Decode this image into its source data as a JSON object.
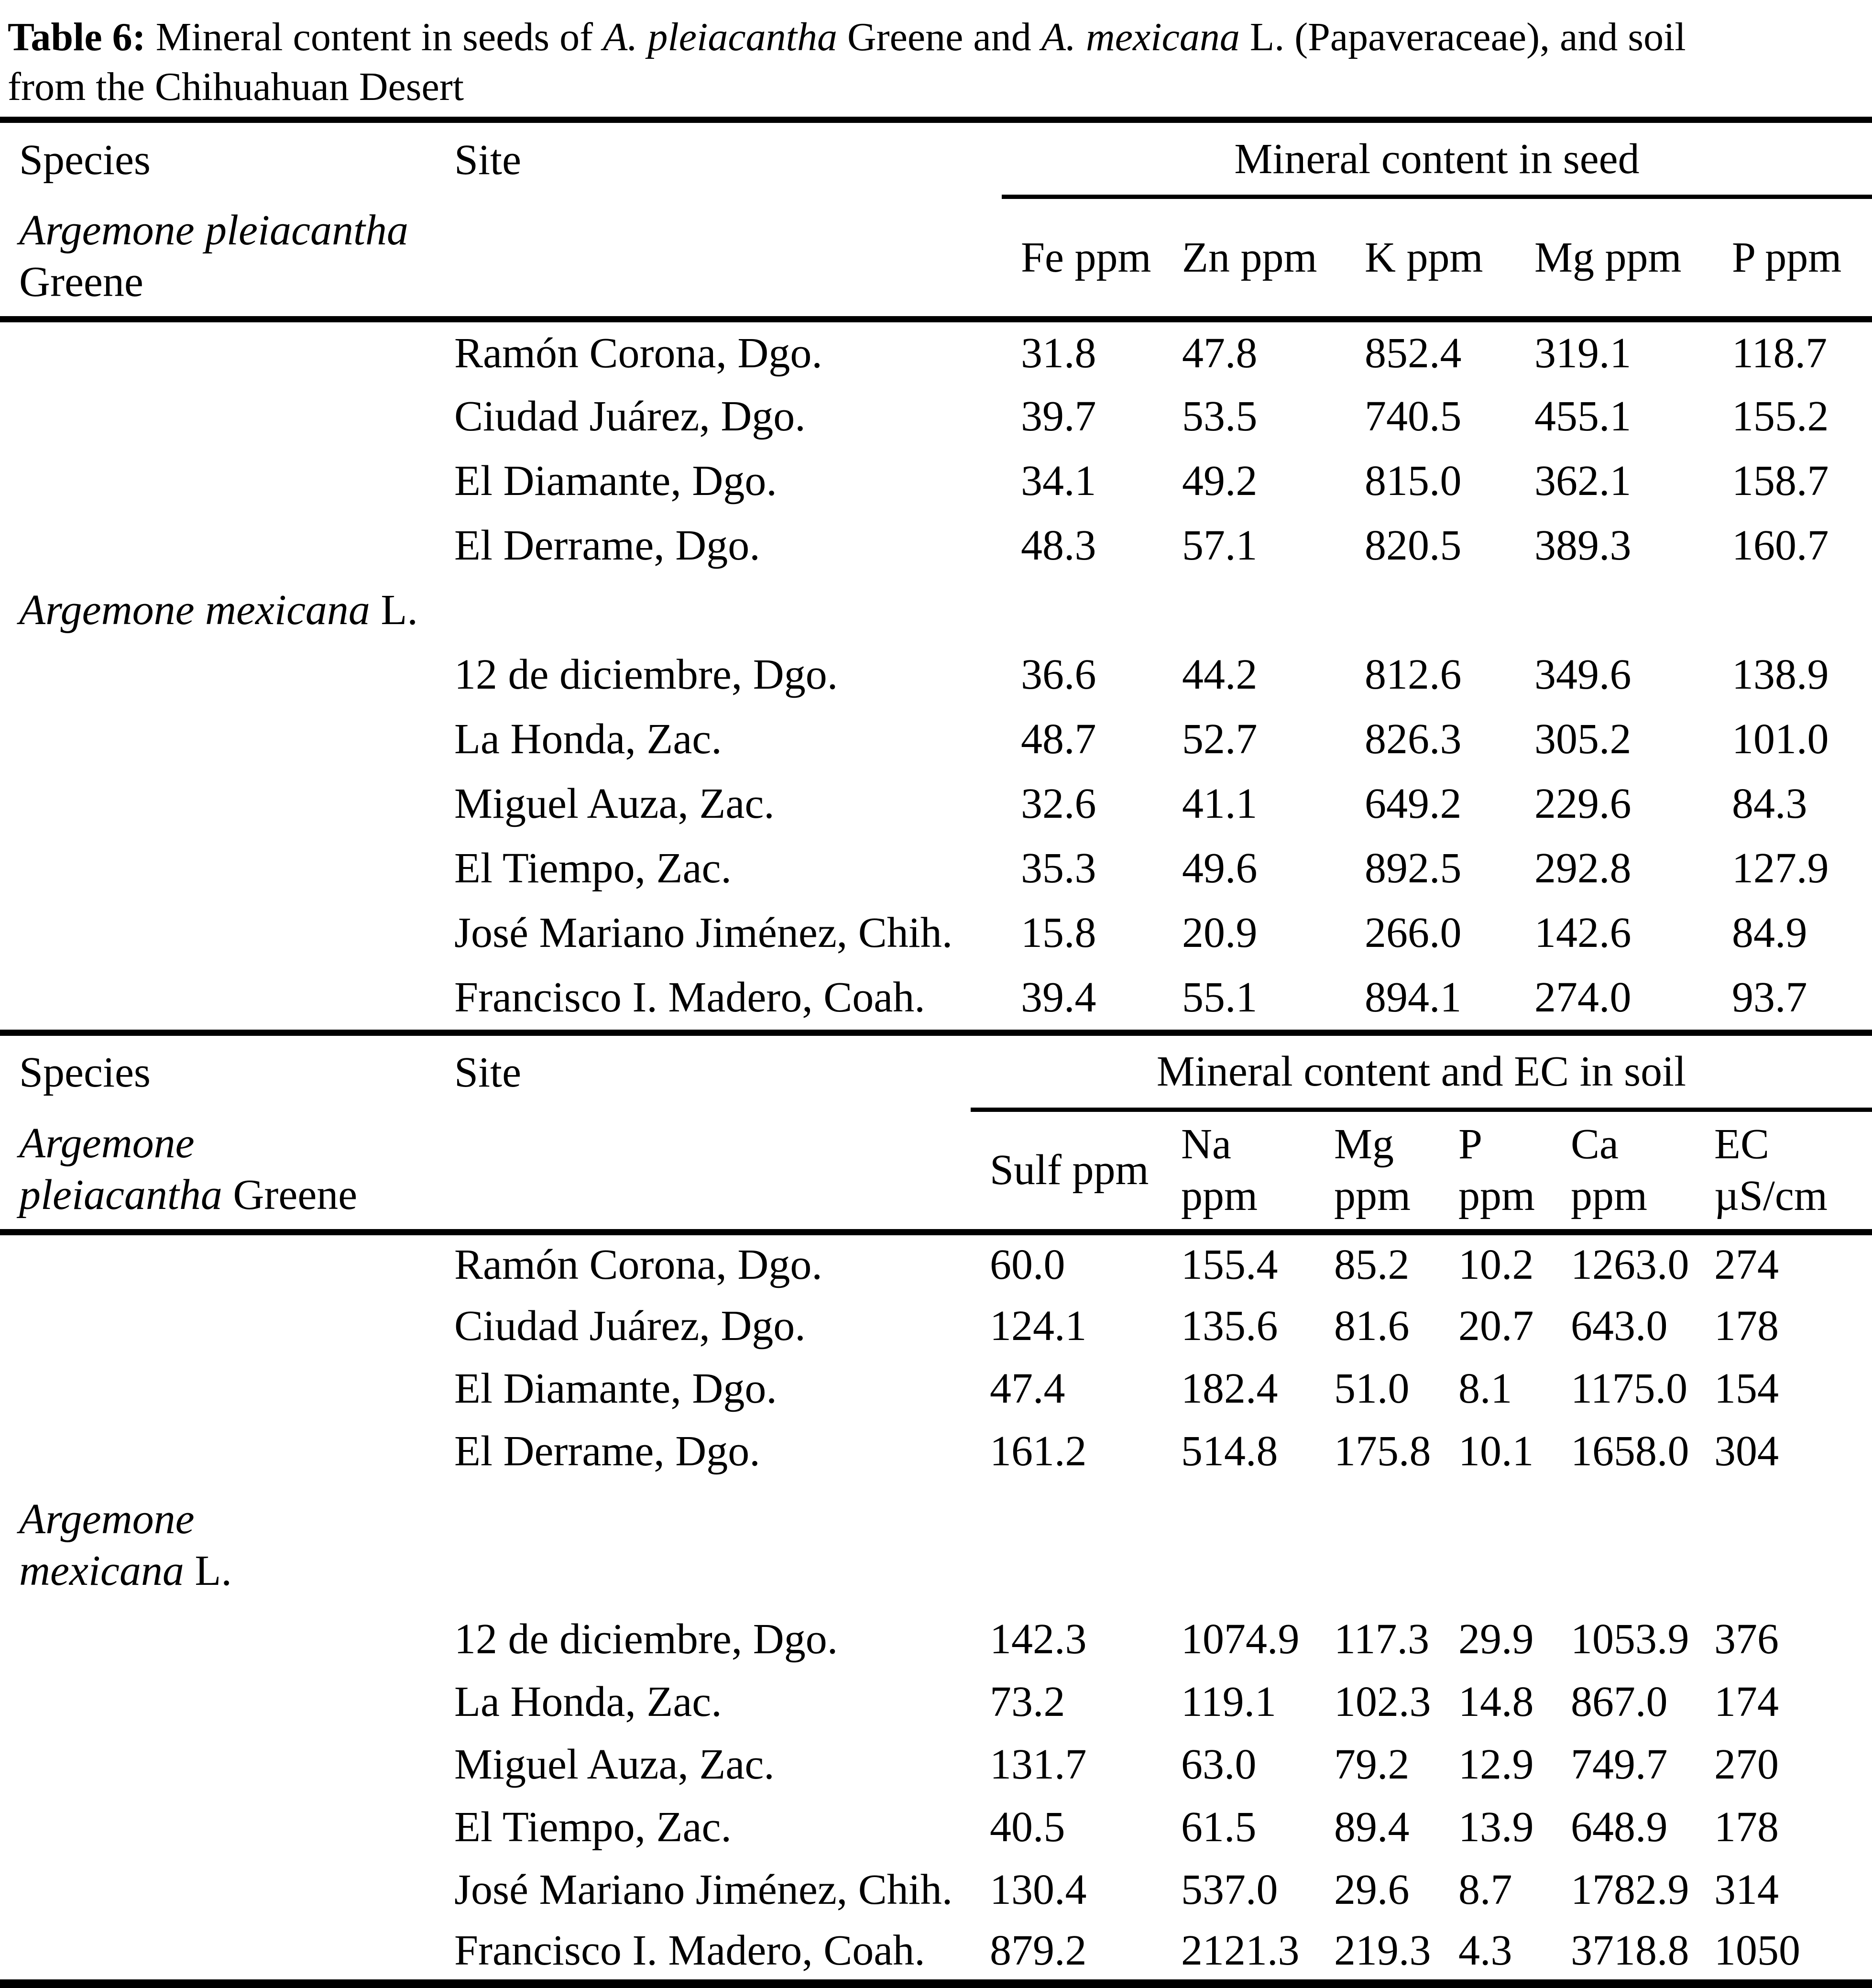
{
  "colors": {
    "background": "#ffffff",
    "text": "#000000",
    "rule": "#000000"
  },
  "title": {
    "line1": {
      "label": "Table 6:",
      "seg1": " Mineral content in seeds of ",
      "sp1": "A. pleiacantha",
      "seg2": " Greene and ",
      "sp2": "A. mexicana",
      "seg3": " L. (Papaveraceae), and soil"
    },
    "line2": "from the Chihuahuan Desert"
  },
  "seed_section": {
    "col_species": "Species",
    "col_site": "Site",
    "group_header": "Mineral content in seed",
    "species_a": {
      "italic": "Argemone pleiacantha",
      "roman": "Greene"
    },
    "species_b": {
      "italic": "Argemone mexicana",
      "roman": " L."
    },
    "columns": [
      "Fe ppm",
      "Zn ppm",
      "K ppm",
      "Mg ppm",
      "P ppm"
    ],
    "rows_a": [
      {
        "site": "Ramón Corona, Dgo.",
        "values": [
          "31.8",
          "47.8",
          "852.4",
          "319.1",
          "118.7"
        ]
      },
      {
        "site": "Ciudad Juárez, Dgo.",
        "values": [
          "39.7",
          "53.5",
          "740.5",
          "455.1",
          "155.2"
        ]
      },
      {
        "site": "El Diamante, Dgo.",
        "values": [
          "34.1",
          "49.2",
          "815.0",
          "362.1",
          "158.7"
        ]
      },
      {
        "site": "El Derrame, Dgo.",
        "values": [
          "48.3",
          "57.1",
          "820.5",
          "389.3",
          "160.7"
        ]
      }
    ],
    "rows_b": [
      {
        "site": "12 de diciembre, Dgo.",
        "values": [
          "36.6",
          "44.2",
          "812.6",
          "349.6",
          "138.9"
        ]
      },
      {
        "site": "La Honda, Zac.",
        "values": [
          "48.7",
          "52.7",
          "826.3",
          "305.2",
          "101.0"
        ]
      },
      {
        "site": "Miguel Auza, Zac.",
        "values": [
          "32.6",
          "41.1",
          "649.2",
          "229.6",
          "84.3"
        ]
      },
      {
        "site": "El Tiempo, Zac.",
        "values": [
          "35.3",
          "49.6",
          "892.5",
          "292.8",
          "127.9"
        ]
      },
      {
        "site": "José Mariano Jiménez, Chih.",
        "values": [
          "15.8",
          "20.9",
          "266.0",
          "142.6",
          "84.9"
        ]
      },
      {
        "site": "Francisco I. Madero, Coah.",
        "values": [
          "39.4",
          "55.1",
          "894.1",
          "274.0",
          "93.7"
        ]
      }
    ]
  },
  "soil_section": {
    "col_species": "Species",
    "col_site": "Site",
    "group_header": "Mineral content and EC in soil",
    "species_a": {
      "italic_1": "Argemone",
      "italic_2": "pleiacantha",
      "roman": " Greene"
    },
    "species_b": {
      "italic_1": "Argemone",
      "italic_2": "mexicana",
      "roman": " L."
    },
    "columns": [
      {
        "top": "Sulf ppm",
        "bottom": ""
      },
      {
        "top": "Na",
        "bottom": "ppm"
      },
      {
        "top": "Mg",
        "bottom": "ppm"
      },
      {
        "top": "P",
        "bottom": "ppm"
      },
      {
        "top": "Ca",
        "bottom": "ppm"
      },
      {
        "top": "EC",
        "bottom": "µS/cm"
      }
    ],
    "rows_a": [
      {
        "site": "Ramón Corona, Dgo.",
        "values": [
          "60.0",
          "155.4",
          "85.2",
          "10.2",
          "1263.0",
          "274"
        ]
      },
      {
        "site": "Ciudad Juárez, Dgo.",
        "values": [
          "124.1",
          "135.6",
          "81.6",
          "20.7",
          "643.0",
          "178"
        ]
      },
      {
        "site": "El Diamante, Dgo.",
        "values": [
          "47.4",
          "182.4",
          "51.0",
          "8.1",
          "1175.0",
          "154"
        ]
      },
      {
        "site": "El Derrame, Dgo.",
        "values": [
          "161.2",
          "514.8",
          "175.8",
          "10.1",
          "1658.0",
          "304"
        ]
      }
    ],
    "rows_b": [
      {
        "site": "12 de diciembre, Dgo.",
        "values": [
          "142.3",
          "1074.9",
          "117.3",
          "29.9",
          "1053.9",
          "376"
        ]
      },
      {
        "site": "La Honda, Zac.",
        "values": [
          "73.2",
          "119.1",
          "102.3",
          "14.8",
          "867.0",
          "174"
        ]
      },
      {
        "site": "Miguel Auza, Zac.",
        "values": [
          "131.7",
          "63.0",
          "79.2",
          "12.9",
          "749.7",
          "270"
        ]
      },
      {
        "site": "El Tiempo, Zac.",
        "values": [
          "40.5",
          "61.5",
          "89.4",
          "13.9",
          "648.9",
          "178"
        ]
      },
      {
        "site": "José Mariano Jiménez, Chih.",
        "values": [
          "130.4",
          "537.0",
          "29.6",
          "8.7",
          "1782.9",
          "314"
        ]
      },
      {
        "site": "Francisco I. Madero, Coah.",
        "values": [
          "879.2",
          "2121.3",
          "219.3",
          "4.3",
          "3718.8",
          "1050"
        ]
      }
    ]
  }
}
